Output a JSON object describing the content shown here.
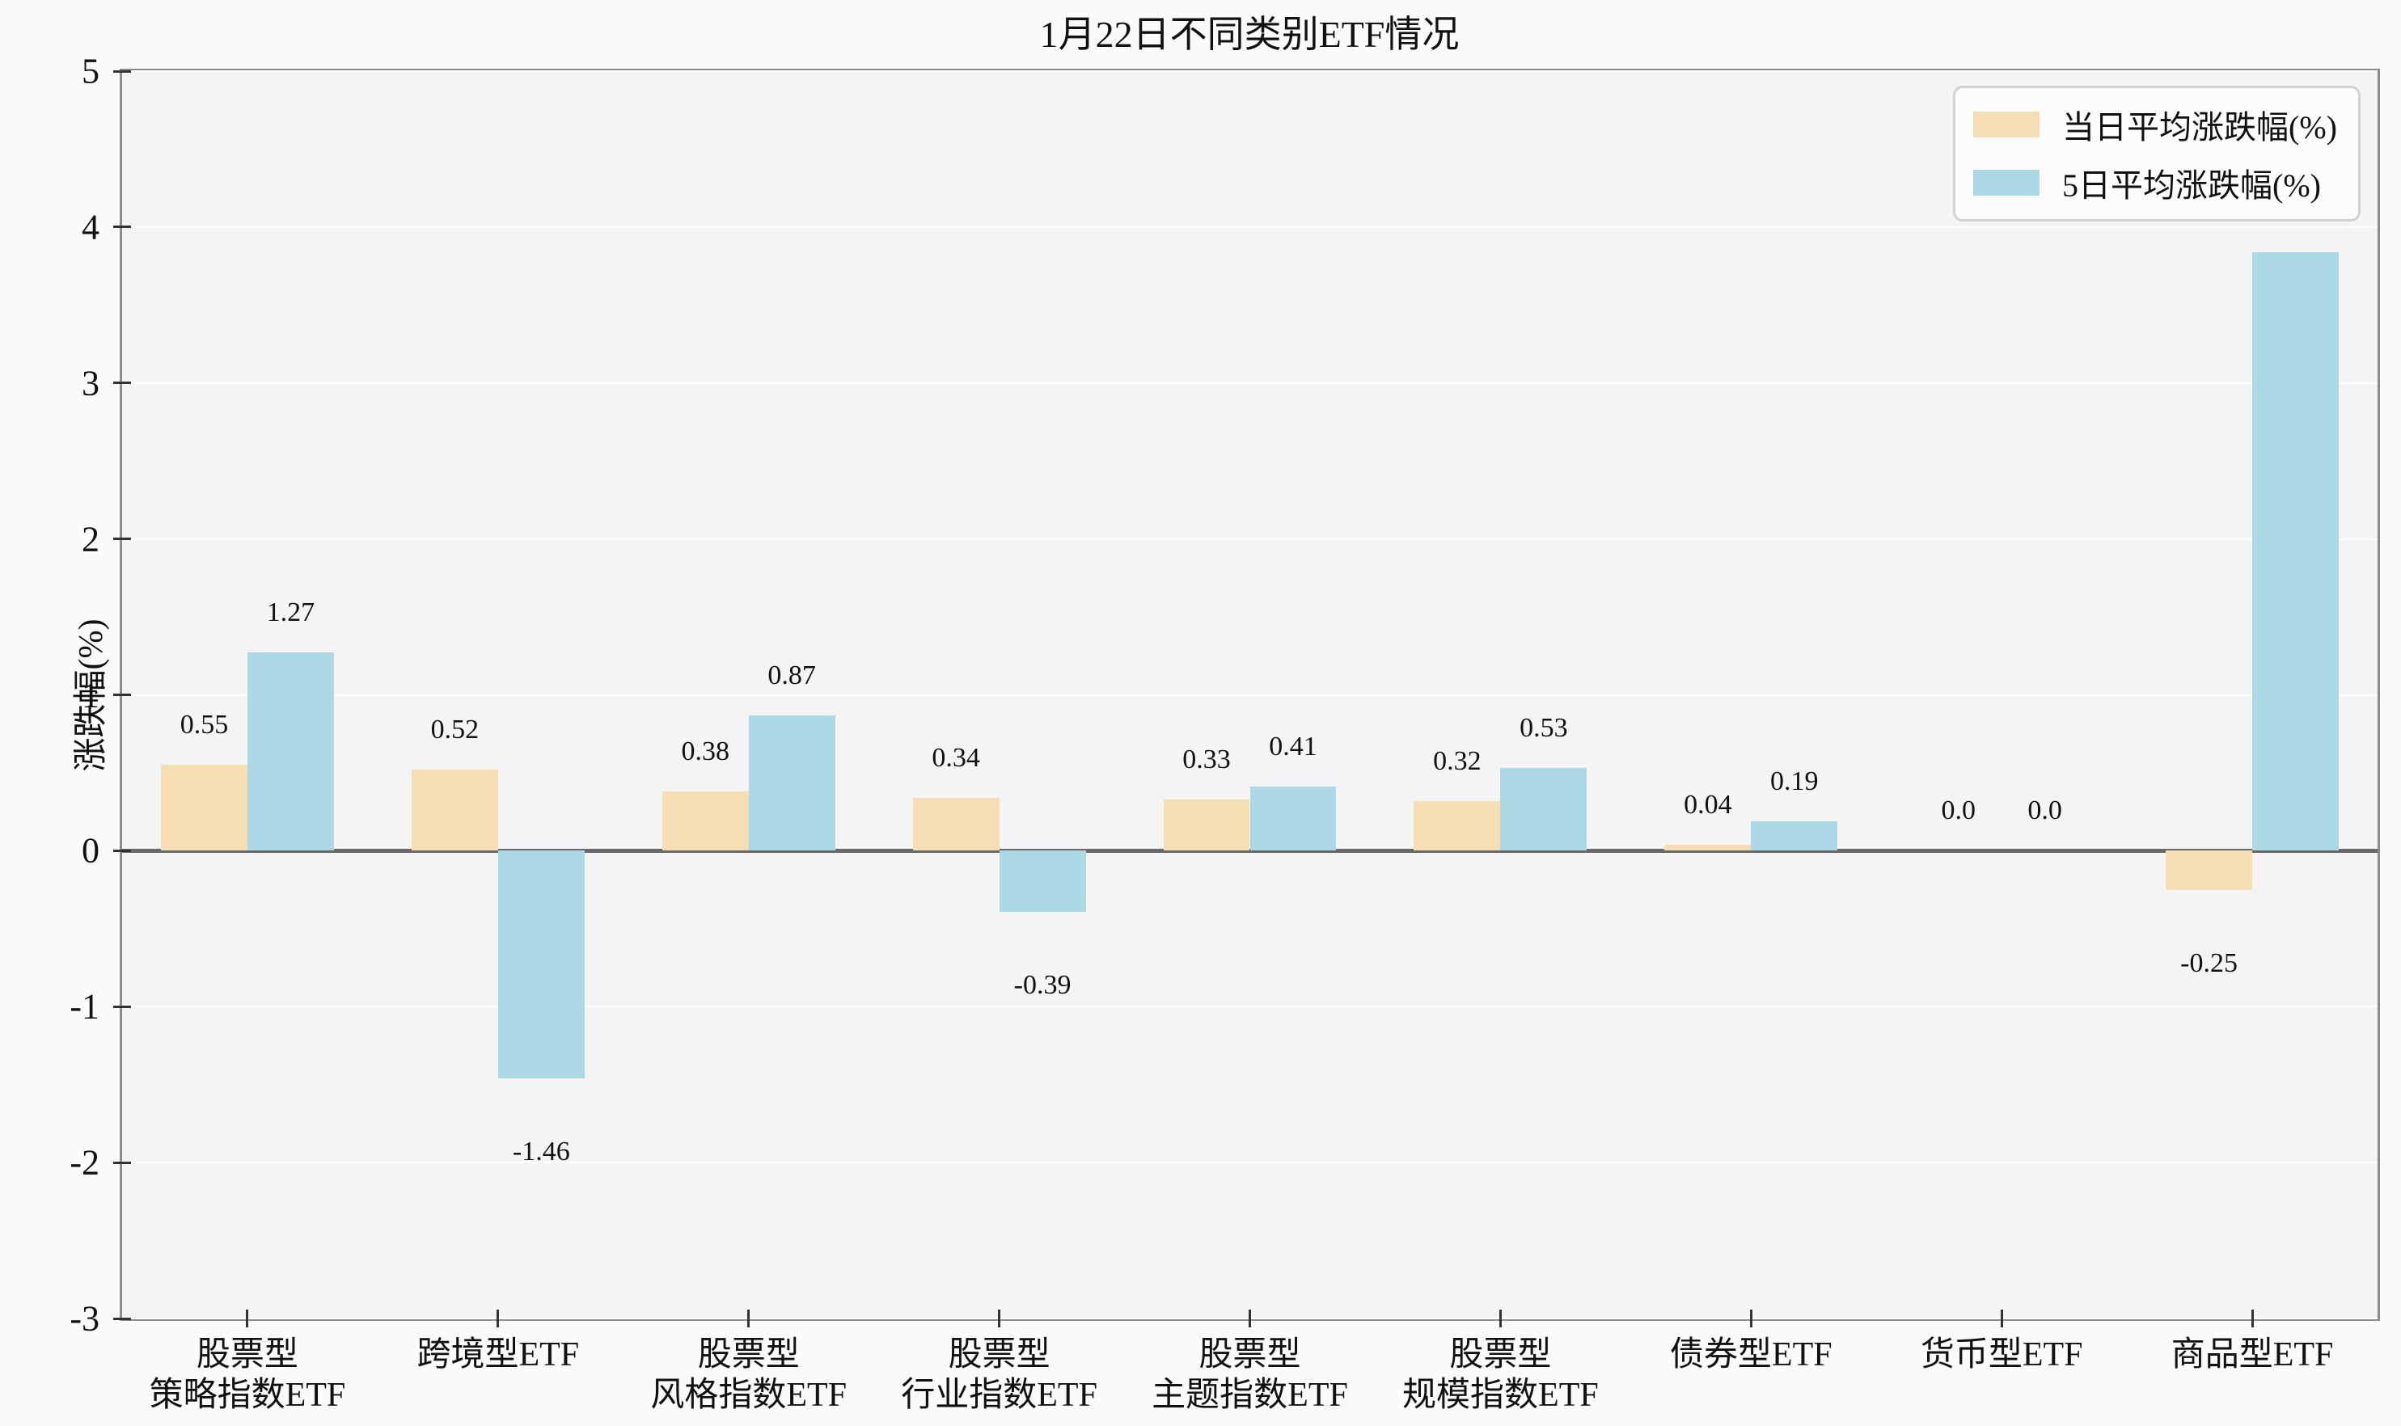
{
  "chart_data": {
    "type": "bar",
    "title": "1月22日不同类别ETF情况",
    "ylabel": "涨跌幅(%)",
    "xlabel": "",
    "ylim": [
      -3,
      5
    ],
    "grid": true,
    "legend_position": "upper right",
    "yticks": [
      {
        "value": 5,
        "label": "5"
      },
      {
        "value": 4,
        "label": "4"
      },
      {
        "value": 3,
        "label": "3"
      },
      {
        "value": 2,
        "label": "2"
      },
      {
        "value": 1,
        "label": "1"
      },
      {
        "value": 0,
        "label": "0"
      },
      {
        "value": -1,
        "label": "-1"
      },
      {
        "value": -2,
        "label": "-2"
      },
      {
        "value": -3,
        "label": "-3"
      }
    ],
    "categories": [
      {
        "lines": [
          "股票型",
          "策略指数ETF"
        ]
      },
      {
        "lines": [
          "跨境型ETF"
        ]
      },
      {
        "lines": [
          "股票型",
          "风格指数ETF"
        ]
      },
      {
        "lines": [
          "股票型",
          "行业指数ETF"
        ]
      },
      {
        "lines": [
          "股票型",
          "主题指数ETF"
        ]
      },
      {
        "lines": [
          "股票型",
          "规模指数ETF"
        ]
      },
      {
        "lines": [
          "债券型ETF"
        ]
      },
      {
        "lines": [
          "货币型ETF"
        ]
      },
      {
        "lines": [
          "商品型ETF"
        ]
      }
    ],
    "series": [
      {
        "name": "当日平均涨跌幅(%)",
        "color": "#F5DEB3",
        "values": [
          0.55,
          0.52,
          0.38,
          0.34,
          0.33,
          0.32,
          0.04,
          0.0,
          -0.25
        ],
        "labels": [
          "0.55",
          "0.52",
          "0.38",
          "0.34",
          "0.33",
          "0.32",
          "0.04",
          "0.0",
          "-0.25"
        ]
      },
      {
        "name": "5日平均涨跌幅(%)",
        "color": "#ADD8E6",
        "values": [
          1.27,
          -1.46,
          0.87,
          -0.39,
          0.41,
          0.53,
          0.19,
          0.0,
          3.84
        ],
        "labels": [
          "1.27",
          "-1.46",
          "0.87",
          "-0.39",
          "0.41",
          "0.53",
          "0.19",
          "0.0",
          "3.84"
        ]
      }
    ],
    "colors": {
      "plot_background": "#f4f4f4",
      "figure_background": "#fafafa",
      "gridline": "#ffffff",
      "spine": "#8c8c8c",
      "zero_line": "#686868",
      "text": "#111111"
    }
  }
}
